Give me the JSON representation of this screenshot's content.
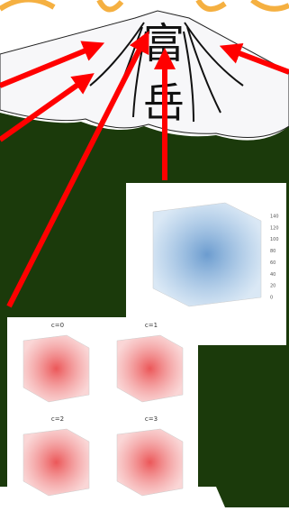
{
  "title": {
    "line1": "富",
    "line2": "岳"
  },
  "big_plot": {
    "zticks": [
      "0",
      "20",
      "40",
      "60",
      "80",
      "100",
      "120",
      "140"
    ]
  },
  "panels": [
    {
      "title": "c=0"
    },
    {
      "title": "c=1"
    },
    {
      "title": "c=2"
    },
    {
      "title": "c=3"
    }
  ]
}
